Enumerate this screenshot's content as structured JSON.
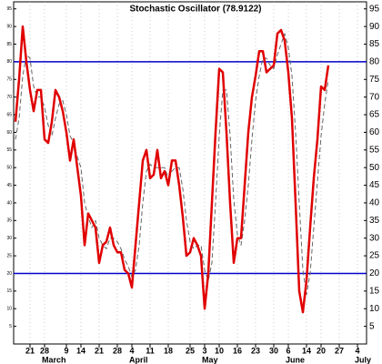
{
  "chart_data": {
    "type": "line",
    "title": "Stochastic Oscillator (78.9122)",
    "categories": [
      null,
      null,
      null,
      null,
      "21",
      null,
      null,
      null,
      "28",
      null,
      null,
      null,
      null,
      null,
      "9",
      null,
      null,
      null,
      "14",
      null,
      null,
      null,
      null,
      "21",
      null,
      null,
      null,
      null,
      "28",
      null,
      null,
      null,
      "4",
      null,
      null,
      null,
      null,
      "11",
      null,
      null,
      null,
      null,
      "18",
      null,
      null,
      null,
      null,
      null,
      "25",
      null,
      null,
      null,
      "3",
      null,
      null,
      null,
      "10",
      null,
      null,
      null,
      null,
      "16",
      null,
      null,
      null,
      null,
      "23",
      null,
      null,
      null,
      null,
      "30",
      null,
      null,
      null,
      "6",
      null,
      null,
      null,
      null,
      "14",
      null,
      null,
      null,
      "20",
      null,
      null,
      null,
      null,
      "27",
      null,
      null,
      null,
      null,
      "4",
      null,
      null
    ],
    "x_groups": [
      {
        "label": "March",
        "start": 8
      },
      {
        "label": "April",
        "start": 32
      },
      {
        "label": "May",
        "start": 52
      },
      {
        "label": "June",
        "start": 75
      },
      {
        "label": "July",
        "start": 94
      }
    ],
    "series": [
      {
        "color": "#e00000",
        "style": "solid",
        "values": [
          63,
          75,
          90,
          80,
          72,
          66,
          72,
          72,
          58,
          57,
          63,
          72,
          70,
          66,
          60,
          52,
          58,
          50,
          42,
          28,
          37,
          35,
          33,
          23,
          28,
          29,
          33,
          28,
          26,
          26,
          21,
          20,
          16,
          28,
          40,
          52,
          55,
          47,
          48,
          55,
          47,
          49,
          45,
          52,
          52,
          45,
          36,
          25,
          26,
          30,
          28,
          25,
          10,
          20,
          40,
          60,
          78,
          77,
          60,
          40,
          23,
          30,
          30,
          45,
          60,
          70,
          76,
          83,
          83,
          77,
          78,
          79,
          88,
          89,
          86,
          77,
          64,
          40,
          15,
          9,
          18,
          33,
          47,
          58,
          73,
          72,
          79,
          null,
          null,
          null,
          null,
          null,
          null,
          null,
          null,
          null,
          null
        ]
      },
      {
        "color": "#666666",
        "style": "dashed",
        "values": [
          58,
          64,
          76,
          82,
          81,
          73,
          70,
          70,
          67,
          62,
          59,
          64,
          68,
          69,
          65,
          59,
          57,
          53,
          50,
          40,
          36,
          33,
          35,
          30,
          28,
          27,
          30,
          30,
          29,
          27,
          24,
          22,
          19,
          21,
          28,
          40,
          49,
          51,
          50,
          50,
          50,
          50,
          47,
          49,
          50,
          50,
          44,
          35,
          29,
          27,
          28,
          28,
          21,
          18,
          23,
          40,
          59,
          72,
          72,
          59,
          41,
          31,
          28,
          35,
          45,
          58,
          69,
          76,
          81,
          81,
          79,
          78,
          82,
          85,
          88,
          84,
          76,
          60,
          40,
          21,
          14,
          20,
          33,
          46,
          59,
          68,
          75,
          null,
          null,
          null,
          null,
          null,
          null,
          null,
          null,
          null,
          null
        ]
      }
    ],
    "hlines": [
      20,
      80
    ],
    "hline_color": "#0000cc",
    "ylim": [
      0,
      97
    ],
    "yticks": [
      5,
      10,
      15,
      20,
      25,
      30,
      35,
      40,
      45,
      50,
      55,
      60,
      65,
      70,
      75,
      80,
      85,
      90,
      95
    ],
    "grid": true
  }
}
